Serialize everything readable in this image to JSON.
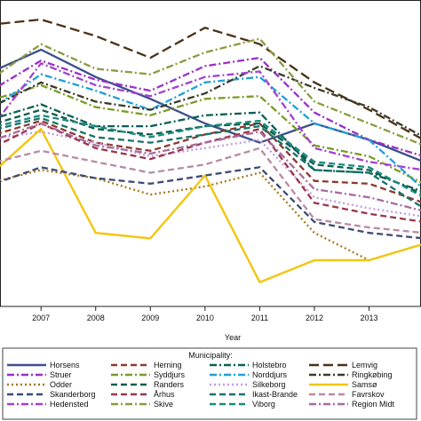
{
  "chart_data": {
    "type": "line",
    "xlabel": "Year",
    "x": [
      2006,
      2007,
      2008,
      2009,
      2010,
      2011,
      2012,
      2013,
      2014
    ],
    "xlim": [
      2006.25,
      2013.95
    ],
    "ylim": [
      0,
      1
    ],
    "grid": false,
    "legend_title": "Municipality:",
    "legend_placement": "bottom",
    "series": [
      {
        "name": "Horsens",
        "color": "#3b4f8a",
        "dash": "solid",
        "values": [
          0.8,
          0.89,
          0.79,
          0.71,
          0.62,
          0.55,
          0.62,
          0.56,
          0.48
        ]
      },
      {
        "name": "Herning",
        "color": "#8b3a2e",
        "dash": "dash",
        "values": [
          0.57,
          0.63,
          0.55,
          0.52,
          0.58,
          0.62,
          0.41,
          0.4,
          0.33
        ]
      },
      {
        "name": "Holstebro",
        "color": "#0d5e55",
        "dash": "dashdot",
        "values": [
          0.63,
          0.69,
          0.61,
          0.61,
          0.65,
          0.66,
          0.45,
          0.44,
          0.37
        ]
      },
      {
        "name": "Lemvig",
        "color": "#4a3216",
        "dash": "longdash",
        "values": [
          0.98,
          1.0,
          0.94,
          0.86,
          0.97,
          0.91,
          0.77,
          0.67,
          0.56
        ]
      },
      {
        "name": "Struer",
        "color": "#9b2ec9",
        "dash": "dashdot",
        "values": [
          0.73,
          0.85,
          0.78,
          0.74,
          0.83,
          0.86,
          0.66,
          0.56,
          0.5
        ]
      },
      {
        "name": "Syddjurs",
        "color": "#7b9a25",
        "dash": "dashdot",
        "values": [
          0.7,
          0.76,
          0.68,
          0.65,
          0.71,
          0.72,
          0.54,
          0.5,
          0.4
        ]
      },
      {
        "name": "Norddjurs",
        "color": "#1f9fd8",
        "dash": "dashdot",
        "values": [
          0.66,
          0.8,
          0.74,
          0.67,
          0.77,
          0.79,
          0.62,
          0.56,
          0.38
        ]
      },
      {
        "name": "Ringkøbing",
        "color": "#3a3a2a",
        "dash": "dashdot",
        "values": [
          0.67,
          0.77,
          0.7,
          0.67,
          0.73,
          0.83,
          0.75,
          0.68,
          0.57
        ]
      },
      {
        "name": "Odder",
        "color": "#a8771a",
        "dash": "dot",
        "values": [
          0.4,
          0.45,
          0.42,
          0.36,
          0.39,
          0.44,
          0.22,
          0.12,
          0.18
        ]
      },
      {
        "name": "Randers",
        "color": "#0d5e4a",
        "dash": "dash",
        "values": [
          0.61,
          0.67,
          0.6,
          0.58,
          0.61,
          0.62,
          0.47,
          0.45,
          0.36
        ]
      },
      {
        "name": "Silkeborg",
        "color": "#c09ae8",
        "dash": "dot",
        "values": [
          0.56,
          0.59,
          0.55,
          0.5,
          0.53,
          0.56,
          0.35,
          0.31,
          0.28
        ]
      },
      {
        "name": "Samsø",
        "color": "#f2c60f",
        "dash": "solid",
        "values": [
          0.42,
          0.6,
          0.22,
          0.2,
          0.43,
          0.04,
          0.12,
          0.12,
          0.18
        ]
      },
      {
        "name": "Skanderborg",
        "color": "#3d4a75",
        "dash": "dash",
        "values": [
          0.39,
          0.46,
          0.42,
          0.4,
          0.43,
          0.46,
          0.26,
          0.22,
          0.2
        ]
      },
      {
        "name": "Århus",
        "color": "#99364a",
        "dash": "dash",
        "values": [
          0.52,
          0.62,
          0.53,
          0.49,
          0.55,
          0.6,
          0.33,
          0.29,
          0.26
        ]
      },
      {
        "name": "Ikast-Brande",
        "color": "#16736a",
        "dash": "dash",
        "values": [
          0.59,
          0.64,
          0.57,
          0.55,
          0.58,
          0.61,
          0.45,
          0.44,
          0.31
        ]
      },
      {
        "name": "Favrskov",
        "color": "#b88aa3",
        "dash": "dash",
        "values": [
          0.47,
          0.52,
          0.48,
          0.44,
          0.47,
          0.53,
          0.27,
          0.24,
          0.22
        ]
      },
      {
        "name": "Hedensted",
        "color": "#a53fd0",
        "dash": "dashdot",
        "values": [
          0.58,
          0.84,
          0.76,
          0.72,
          0.79,
          0.81,
          0.53,
          0.48,
          0.45
        ]
      },
      {
        "name": "Skive",
        "color": "#8c9a40",
        "dash": "dashdot",
        "values": [
          0.77,
          0.91,
          0.82,
          0.8,
          0.88,
          0.93,
          0.7,
          0.62,
          0.54
        ]
      },
      {
        "name": "Viborg",
        "color": "#1a8a80",
        "dash": "dash",
        "values": [
          0.6,
          0.65,
          0.61,
          0.57,
          0.61,
          0.63,
          0.48,
          0.46,
          0.35
        ]
      },
      {
        "name": "Region Midt",
        "color": "#a86b9e",
        "dash": "dashdot",
        "values": [
          0.55,
          0.62,
          0.54,
          0.51,
          0.55,
          0.59,
          0.38,
          0.35,
          0.3
        ]
      }
    ]
  }
}
